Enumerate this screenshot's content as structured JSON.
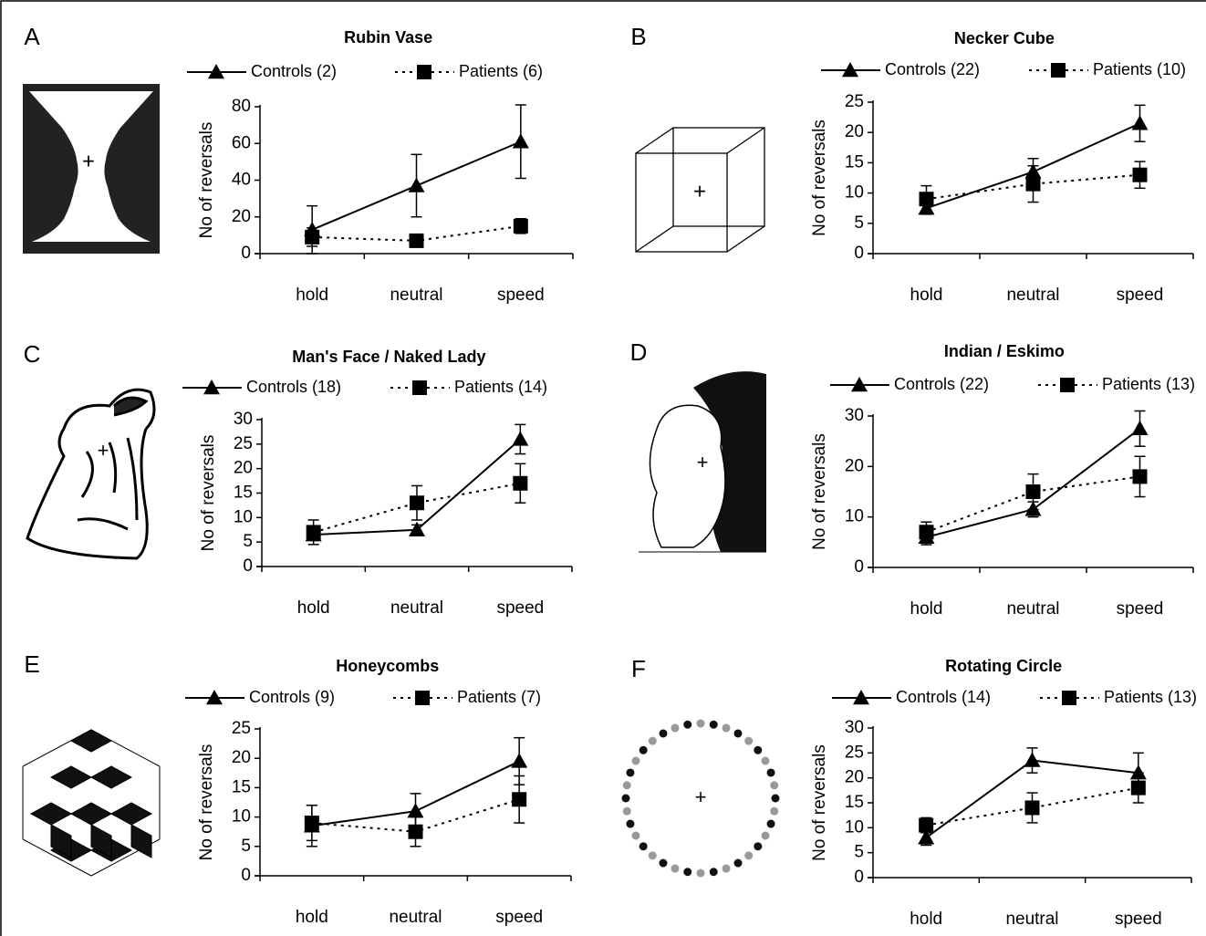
{
  "chart_data": [
    {
      "type": "line",
      "panel": "A",
      "title": "Rubin Vase",
      "ylabel": "No of reversals",
      "categories": [
        "hold",
        "neutral",
        "speed"
      ],
      "ylim": [
        0,
        80
      ],
      "yticks": [
        0,
        20,
        40,
        60,
        80
      ],
      "series": [
        {
          "name": "Controls (2)",
          "color": "#000000",
          "line_style": "solid",
          "marker": "triangle",
          "values": [
            13,
            37,
            61
          ],
          "errors": [
            13,
            17,
            20
          ]
        },
        {
          "name": "Patients (6)",
          "color": "#000000",
          "line_style": "dashed",
          "marker": "square",
          "values": [
            9,
            7,
            15
          ],
          "errors": [
            5,
            1,
            4
          ]
        }
      ]
    },
    {
      "type": "line",
      "panel": "B",
      "title": "Necker Cube",
      "ylabel": "No of reversals",
      "categories": [
        "hold",
        "neutral",
        "speed"
      ],
      "ylim": [
        0,
        25
      ],
      "yticks": [
        0,
        5,
        10,
        15,
        20,
        25
      ],
      "series": [
        {
          "name": "Controls (22)",
          "color": "#000000",
          "line_style": "solid",
          "marker": "triangle",
          "values": [
            7.5,
            13.5,
            21.5
          ],
          "errors": [
            1,
            2.2,
            3
          ]
        },
        {
          "name": "Patients (10)",
          "color": "#000000",
          "line_style": "dashed",
          "marker": "square",
          "values": [
            9,
            11.5,
            13
          ],
          "errors": [
            2.2,
            3,
            2.2
          ]
        }
      ]
    },
    {
      "type": "line",
      "panel": "C",
      "title": "Man's Face / Naked Lady",
      "ylabel": "No of reversals",
      "categories": [
        "hold",
        "neutral",
        "speed"
      ],
      "ylim": [
        0,
        30
      ],
      "yticks": [
        0,
        5,
        10,
        15,
        20,
        25,
        30
      ],
      "series": [
        {
          "name": "Controls (18)",
          "color": "#000000",
          "line_style": "solid",
          "marker": "triangle",
          "values": [
            6.5,
            7.5,
            26
          ],
          "errors": [
            1,
            1,
            3
          ]
        },
        {
          "name": "Patients (14)",
          "color": "#000000",
          "line_style": "dashed",
          "marker": "square",
          "values": [
            7,
            13,
            17
          ],
          "errors": [
            2.5,
            3.5,
            4
          ]
        }
      ]
    },
    {
      "type": "line",
      "panel": "D",
      "title": "Indian / Eskimo",
      "ylabel": "No of reversals",
      "categories": [
        "hold",
        "neutral",
        "speed"
      ],
      "ylim": [
        0,
        30
      ],
      "yticks": [
        0,
        10,
        20,
        30
      ],
      "series": [
        {
          "name": "Controls (22)",
          "color": "#000000",
          "line_style": "solid",
          "marker": "triangle",
          "values": [
            6,
            11.5,
            27.5
          ],
          "errors": [
            1.5,
            1.5,
            3.5
          ]
        },
        {
          "name": "Patients (13)",
          "color": "#000000",
          "line_style": "dashed",
          "marker": "square",
          "values": [
            7,
            15,
            18
          ],
          "errors": [
            2,
            3.5,
            4
          ]
        }
      ]
    },
    {
      "type": "line",
      "panel": "E",
      "title": "Honeycombs",
      "ylabel": "No of reversals",
      "categories": [
        "hold",
        "neutral",
        "speed"
      ],
      "ylim": [
        0,
        25
      ],
      "yticks": [
        0,
        5,
        10,
        15,
        20,
        25
      ],
      "series": [
        {
          "name": "Controls (9)",
          "color": "#000000",
          "line_style": "solid",
          "marker": "triangle",
          "values": [
            8.5,
            11,
            19.5
          ],
          "errors": [
            3.5,
            3,
            4
          ]
        },
        {
          "name": "Patients (7)",
          "color": "#000000",
          "line_style": "dashed",
          "marker": "square",
          "values": [
            9,
            7.5,
            13
          ],
          "errors": [
            3,
            2.5,
            4
          ]
        }
      ]
    },
    {
      "type": "line",
      "panel": "F",
      "title": "Rotating Circle",
      "ylabel": "No of reversals",
      "categories": [
        "hold",
        "neutral",
        "speed"
      ],
      "ylim": [
        0,
        30
      ],
      "yticks": [
        0,
        5,
        10,
        15,
        20,
        25,
        30
      ],
      "series": [
        {
          "name": "Controls (14)",
          "color": "#000000",
          "line_style": "solid",
          "marker": "triangle",
          "values": [
            8,
            23.5,
            21
          ],
          "errors": [
            1.5,
            2.5,
            4
          ]
        },
        {
          "name": "Patients (13)",
          "color": "#000000",
          "line_style": "dashed",
          "marker": "square",
          "values": [
            10.5,
            14,
            18
          ],
          "errors": [
            1.5,
            3,
            3
          ]
        }
      ]
    }
  ]
}
